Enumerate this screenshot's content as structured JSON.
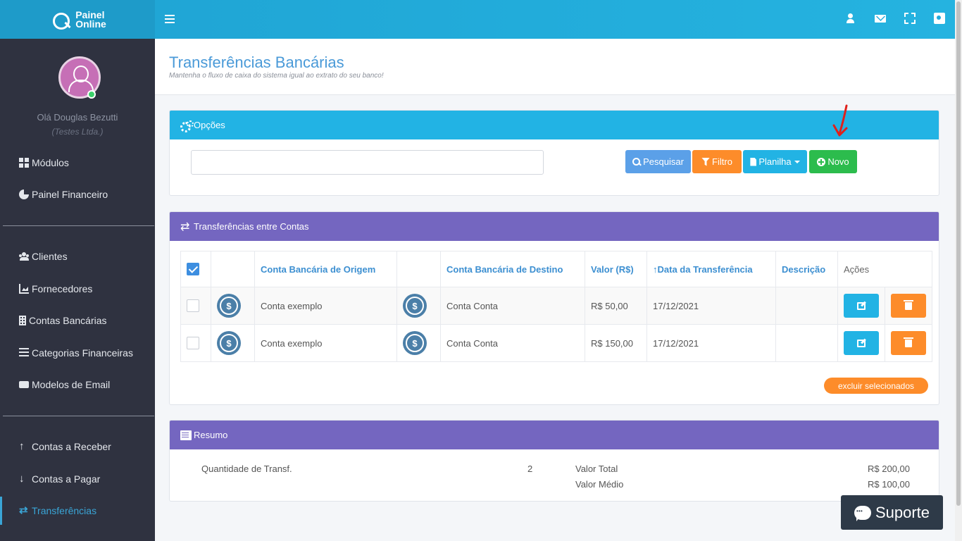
{
  "brand": {
    "line1": "Painel",
    "line2": "Online"
  },
  "user": {
    "greeting": "Olá Douglas Bezutti",
    "company": "(Testes Ltda.)"
  },
  "sidebar": {
    "items": [
      {
        "label": "Módulos",
        "icon": "grid-icon"
      },
      {
        "label": "Painel Financeiro",
        "icon": "pie-chart-icon"
      },
      {
        "label": "Clientes",
        "icon": "users-icon"
      },
      {
        "label": "Fornecedores",
        "icon": "area-chart-icon"
      },
      {
        "label": "Contas Bancárias",
        "icon": "building-icon"
      },
      {
        "label": "Categorias Financeiras",
        "icon": "list-icon"
      },
      {
        "label": "Modelos de Email",
        "icon": "email-icon"
      },
      {
        "label": "Contas a Receber",
        "icon": "arrow-up-icon"
      },
      {
        "label": "Contas a Pagar",
        "icon": "arrow-down-icon"
      },
      {
        "label": "Transferências",
        "icon": "exchange-icon"
      }
    ]
  },
  "page": {
    "title": "Transferências Bancárias",
    "subtitle": "Mantenha o fluxo de caixa do sistema igual ao extrato do seu banco!"
  },
  "options": {
    "title": "Opções",
    "search_value": "",
    "buttons": {
      "search": "Pesquisar",
      "filter": "Filtro",
      "sheet": "Planilha",
      "new": "Novo"
    }
  },
  "transfers": {
    "title": "Transferências entre Contas",
    "columns": {
      "origin": "Conta Bancária de Origem",
      "destination": "Conta Bancária de Destino",
      "value": "Valor (R$)",
      "date": "Data da Transferência",
      "description": "Descrição",
      "actions": "Ações"
    },
    "rows": [
      {
        "origin": "Conta exemplo",
        "destination": "Conta Conta",
        "value": "R$ 50,00",
        "date": "17/12/2021",
        "description": ""
      },
      {
        "origin": "Conta exemplo",
        "destination": "Conta Conta",
        "value": "R$ 150,00",
        "date": "17/12/2021",
        "description": ""
      }
    ],
    "coin_symbol": "$",
    "bulk_delete": "excluir selecionados"
  },
  "summary": {
    "title": "Resumo",
    "count_label": "Quantidade de Transf.",
    "count_value": "2",
    "total_label": "Valor Total",
    "total_value": "R$ 200,00",
    "avg_label": "Valor Médio",
    "avg_value": "R$ 100,00"
  },
  "support": {
    "label": "Suporte"
  },
  "colors": {
    "header": "#22b3e4",
    "purple": "#7466c0",
    "orange": "#fd8c2a",
    "green": "#2cbc4d",
    "sidebar": "#2f3240"
  }
}
